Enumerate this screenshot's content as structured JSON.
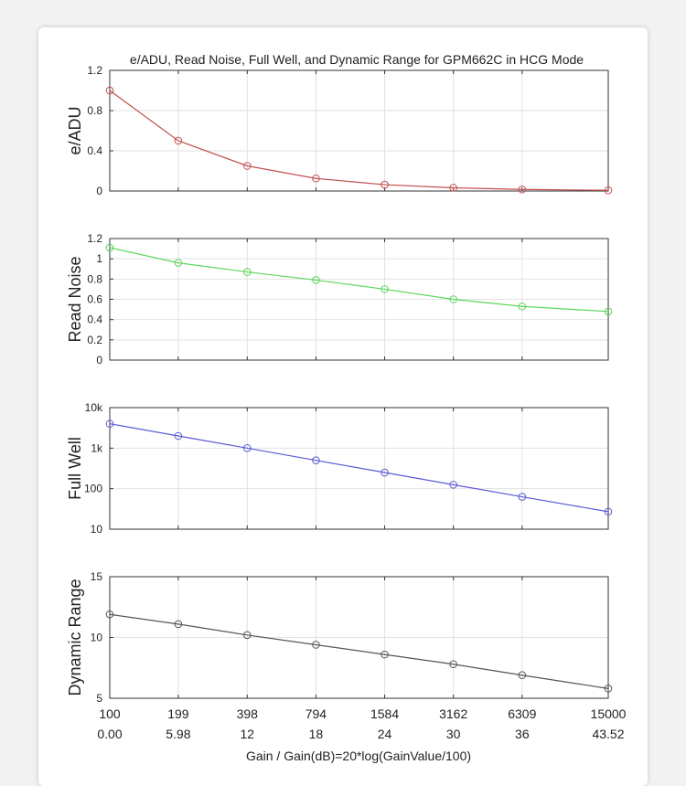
{
  "chart_data": {
    "title": "e/ADU, Read Noise, Full Well, and Dynamic Range for GPM662C in HCG Mode",
    "x_tick_labels_gain": [
      "100",
      "199",
      "398",
      "794",
      "1584",
      "3162",
      "6309",
      "15000"
    ],
    "x_tick_labels_db": [
      "0.00",
      "5.98",
      "12",
      "18",
      "24",
      "30",
      "36",
      "43.52"
    ],
    "xlabel": "Gain / Gain(dB)=20*log(GainValue/100)",
    "x_values": [
      0,
      5.98,
      12,
      18,
      24,
      30,
      36,
      43.52
    ],
    "xlim": [
      0,
      43.52
    ],
    "subplots": [
      {
        "type": "line",
        "ylabel": "e/ADU",
        "color": "#c0504d",
        "scale": "linear",
        "ylim": [
          0,
          1.2
        ],
        "y_ticks": [
          0,
          0.4,
          0.8,
          1.2
        ],
        "y_tick_labels": [
          "0",
          "0.4",
          "0.8",
          "1.2"
        ],
        "values": [
          1.0,
          0.5,
          0.25,
          0.125,
          0.063,
          0.032,
          0.016,
          0.007
        ]
      },
      {
        "type": "line",
        "ylabel": "Read Noise",
        "color": "#5cd65c",
        "scale": "linear",
        "ylim": [
          0,
          1.2
        ],
        "y_ticks": [
          0,
          0.2,
          0.4,
          0.6,
          0.8,
          1,
          1.2
        ],
        "y_tick_labels": [
          "0",
          "0.2",
          "0.4",
          "0.6",
          "0.8",
          "1",
          "1.2"
        ],
        "values": [
          1.11,
          0.96,
          0.87,
          0.79,
          0.7,
          0.6,
          0.53,
          0.48
        ]
      },
      {
        "type": "line",
        "ylabel": "Full Well",
        "color": "#5b5bd6",
        "scale": "log",
        "ylim": [
          10,
          10000
        ],
        "y_ticks": [
          10,
          100,
          1000,
          10000
        ],
        "y_tick_labels": [
          "10",
          "100",
          "1k",
          "10k"
        ],
        "values": [
          4000,
          2000,
          1000,
          500,
          250,
          125,
          63,
          27
        ]
      },
      {
        "type": "line",
        "ylabel": "Dynamic Range",
        "color": "#555555",
        "scale": "linear",
        "ylim": [
          5,
          15
        ],
        "y_ticks": [
          5,
          10,
          15
        ],
        "y_tick_labels": [
          "5",
          "10",
          "15"
        ],
        "values": [
          11.9,
          11.1,
          10.2,
          9.4,
          8.6,
          7.8,
          6.9,
          5.8
        ]
      }
    ]
  }
}
